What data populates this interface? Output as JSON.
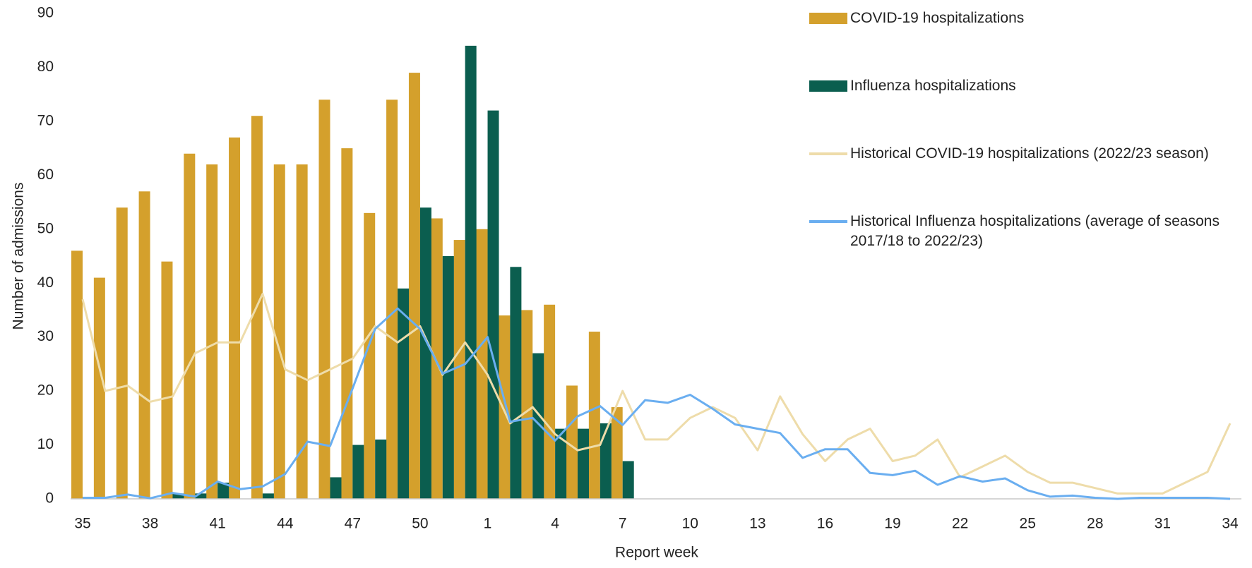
{
  "chart_data": {
    "type": "bar",
    "ylabel": "Number of admissions",
    "xlabel": "Report week",
    "categories": [
      "35",
      null,
      null,
      "38",
      null,
      null,
      "41",
      null,
      null,
      "44",
      null,
      null,
      "47",
      null,
      null,
      "50",
      null,
      null,
      "1",
      null,
      null,
      "4",
      null,
      null,
      "7",
      null,
      null,
      "10",
      null,
      null,
      "13",
      null,
      null,
      "16",
      null,
      null,
      "19",
      null,
      null,
      "22",
      null,
      null,
      "25",
      null,
      null,
      "28",
      null,
      null,
      "31",
      null,
      null,
      "34"
    ],
    "series": [
      {
        "name": "COVID-19 hospitalizations",
        "type": "bar",
        "color": "#d4a02c",
        "values": [
          46,
          41,
          54,
          57,
          44,
          64,
          62,
          67,
          71,
          62,
          62,
          74,
          65,
          53,
          74,
          79,
          52,
          48,
          50,
          34,
          35,
          36,
          21,
          31,
          17,
          null,
          null,
          null,
          null,
          null,
          null,
          null,
          null,
          null,
          null,
          null,
          null,
          null,
          null,
          null,
          null,
          null,
          null,
          null,
          null,
          null,
          null,
          null,
          null,
          null,
          null,
          null
        ]
      },
      {
        "name": "Influenza hospitalizations",
        "type": "bar",
        "color": "#0b5e4f",
        "values": [
          0,
          0,
          0,
          0,
          1,
          1,
          3,
          0,
          1,
          0,
          0,
          4,
          10,
          11,
          39,
          54,
          45,
          84,
          72,
          43,
          27,
          13,
          13,
          14,
          7,
          null,
          null,
          null,
          null,
          null,
          null,
          null,
          null,
          null,
          null,
          null,
          null,
          null,
          null,
          null,
          null,
          null,
          null,
          null,
          null,
          null,
          null,
          null,
          null,
          null,
          null,
          null
        ]
      },
      {
        "name": "Historical COVID-19 hospitalizations (2022/23 season)",
        "type": "line",
        "color": "#eedcaa",
        "values": [
          37,
          20,
          21,
          18,
          19,
          27,
          29,
          29,
          38,
          24,
          22,
          24,
          26,
          32,
          29,
          32,
          23,
          29,
          23,
          14,
          17,
          12,
          9,
          10,
          20,
          11,
          11,
          15,
          17,
          15,
          9,
          19,
          12,
          7,
          11,
          13,
          7,
          8,
          11,
          4,
          6,
          8,
          5,
          3,
          3,
          2,
          1,
          1,
          1,
          3,
          5,
          14
        ]
      },
      {
        "name": "Historical Influenza hospitalizations (average of seasons 2017/18 to 2022/23)",
        "type": "line",
        "color": "#6aaef0",
        "values": [
          0.2,
          0.2,
          0.8,
          0.1,
          1.1,
          0.4,
          3.2,
          1.8,
          2.3,
          4.6,
          10.6,
          9.8,
          20.5,
          31.5,
          35.3,
          31.5,
          23.2,
          25,
          30,
          14.3,
          15,
          10.8,
          15.3,
          17.2,
          13.7,
          18.3,
          17.8,
          19.3,
          16.7,
          13.8,
          13,
          12.2,
          7.6,
          9.2,
          9.2,
          4.8,
          4.4,
          5.2,
          2.6,
          4.2,
          3.2,
          3.8,
          1.6,
          0.4,
          0.6,
          0.2,
          0,
          0.2,
          0.2,
          0.2,
          0.2,
          0
        ]
      }
    ],
    "ylim": [
      0,
      90
    ],
    "yticks": [
      0,
      10,
      20,
      30,
      40,
      50,
      60,
      70,
      80,
      90
    ],
    "grid": false,
    "legend": "top-right"
  }
}
